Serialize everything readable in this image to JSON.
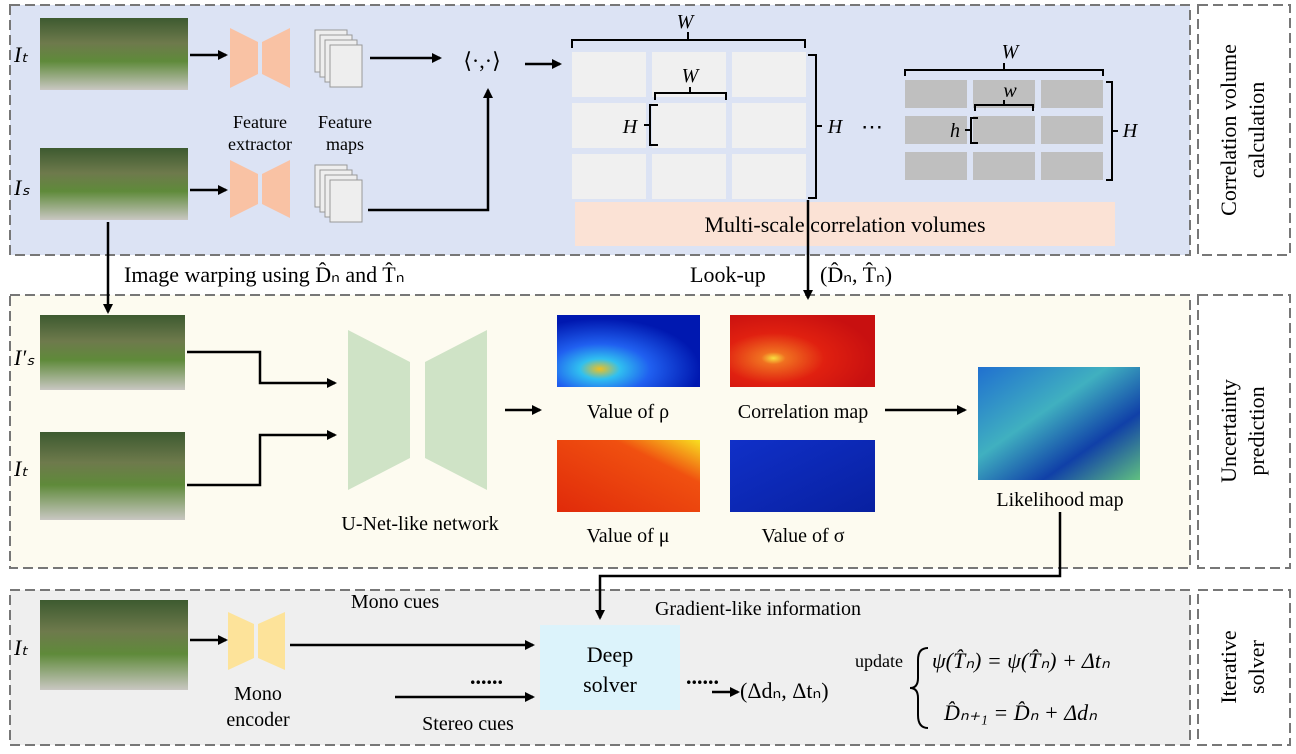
{
  "sections": [
    {
      "label": [
        "Correlation volume",
        "calculation"
      ]
    },
    {
      "label": [
        "Uncertainty",
        "prediction"
      ]
    },
    {
      "label": [
        "Iterative",
        "solver"
      ]
    }
  ],
  "correlation": {
    "inputs": [
      "Iₜ",
      "Iₛ"
    ],
    "feature_extractor": [
      "Feature",
      "extractor"
    ],
    "feature_maps": [
      "Feature",
      "maps"
    ],
    "inner_product": "⟨·,·⟩",
    "volume_large": {
      "width": "W",
      "inner_width": "W",
      "inner_height": "H",
      "height": "H"
    },
    "ellipsis": "⋯",
    "volume_small": {
      "width": "W",
      "inner_width": "w",
      "inner_height": "h",
      "height": "H"
    },
    "caption": "Multi-scale correlation volumes"
  },
  "links": {
    "warping": "Image warping using D̂ₙ and T̂ₙ",
    "lookup": "Look-up",
    "lookup_args": "(D̂ₙ, T̂ₙ)"
  },
  "uncertainty": {
    "inputs": [
      "I′ₛ",
      "Iₜ"
    ],
    "network": "U-Net-like network",
    "maps": [
      "Value of ρ",
      "Correlation map",
      "Value of μ",
      "Value of σ"
    ],
    "likelihood": "Likelihood map"
  },
  "solver": {
    "input": "Iₜ",
    "encoder": [
      "Mono",
      "encoder"
    ],
    "mono_cues": "Mono cues",
    "stereo_cues": "Stereo cues",
    "dots": [
      "......",
      "......"
    ],
    "solver": [
      "Deep",
      "solver"
    ],
    "gradient": "Gradient-like information",
    "output": "(Δdₙ, Δtₙ)",
    "update": "update",
    "equations": [
      "ψ(T̂ₙ) = ψ(T̂ₙ) + Δtₙ",
      "D̂ₙ₊₁ = D̂ₙ + Δdₙ"
    ]
  }
}
